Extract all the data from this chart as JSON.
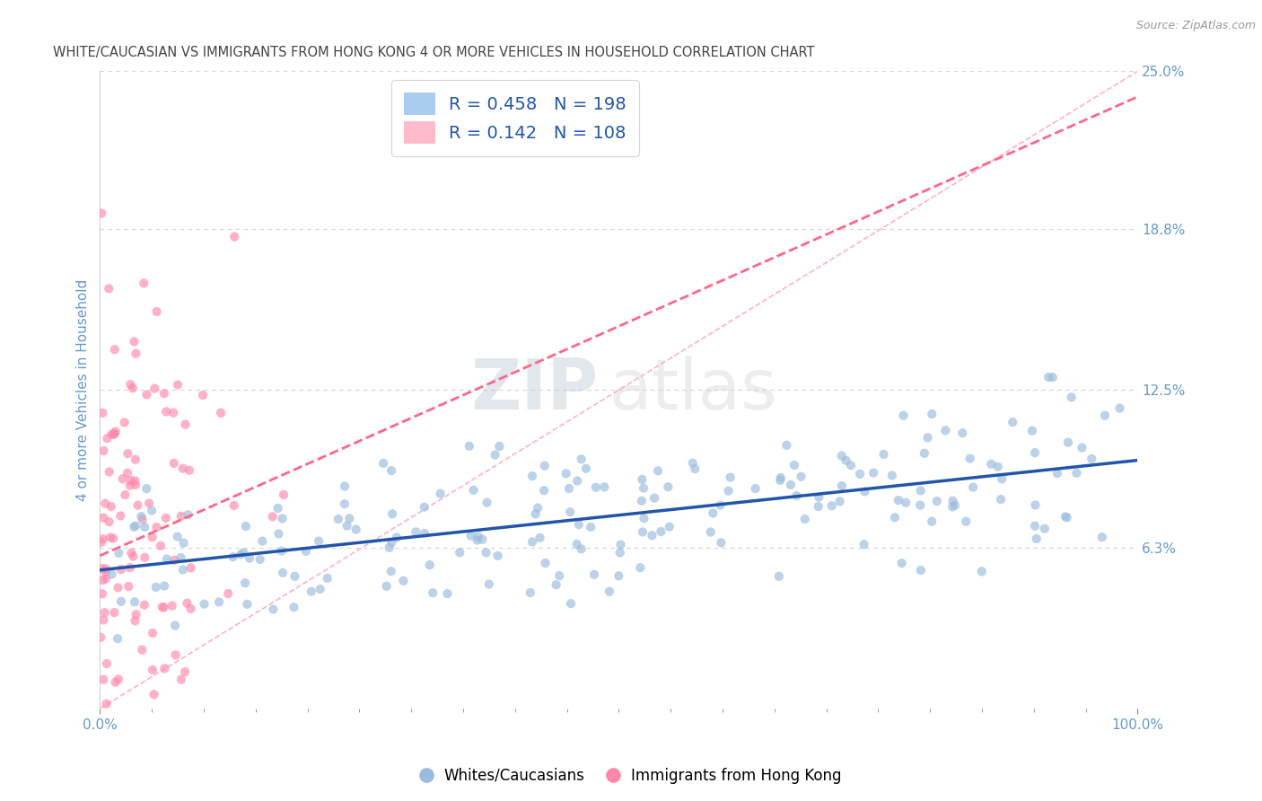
{
  "title": "WHITE/CAUCASIAN VS IMMIGRANTS FROM HONG KONG 4 OR MORE VEHICLES IN HOUSEHOLD CORRELATION CHART",
  "source": "Source: ZipAtlas.com",
  "ylabel": "4 or more Vehicles in Household",
  "xlim": [
    0,
    100
  ],
  "ylim": [
    0,
    25
  ],
  "ytick_labels": [
    "6.3%",
    "12.5%",
    "18.8%",
    "25.0%"
  ],
  "ytick_values": [
    6.3,
    12.5,
    18.8,
    25.0
  ],
  "xtick_labels": [
    "0.0%",
    "100.0%"
  ],
  "r_blue": 0.458,
  "n_blue": 198,
  "r_pink": 0.142,
  "n_pink": 108,
  "blue_dot_color": "#99BBDD",
  "blue_line_color": "#2255AA",
  "blue_legend_fill": "#AACCEE",
  "pink_dot_color": "#FF88AA",
  "pink_legend_fill": "#FFBBCC",
  "pink_line_color": "#FF6688",
  "ref_line_color": "#FFAABB",
  "grid_color": "#CCCCCC",
  "legend_label_blue": "Whites/Caucasians",
  "legend_label_pink": "Immigrants from Hong Kong",
  "watermark_zip": "ZIP",
  "watermark_atlas": "atlas",
  "title_color": "#444444",
  "axis_color": "#6699CC",
  "source_color": "#999999"
}
